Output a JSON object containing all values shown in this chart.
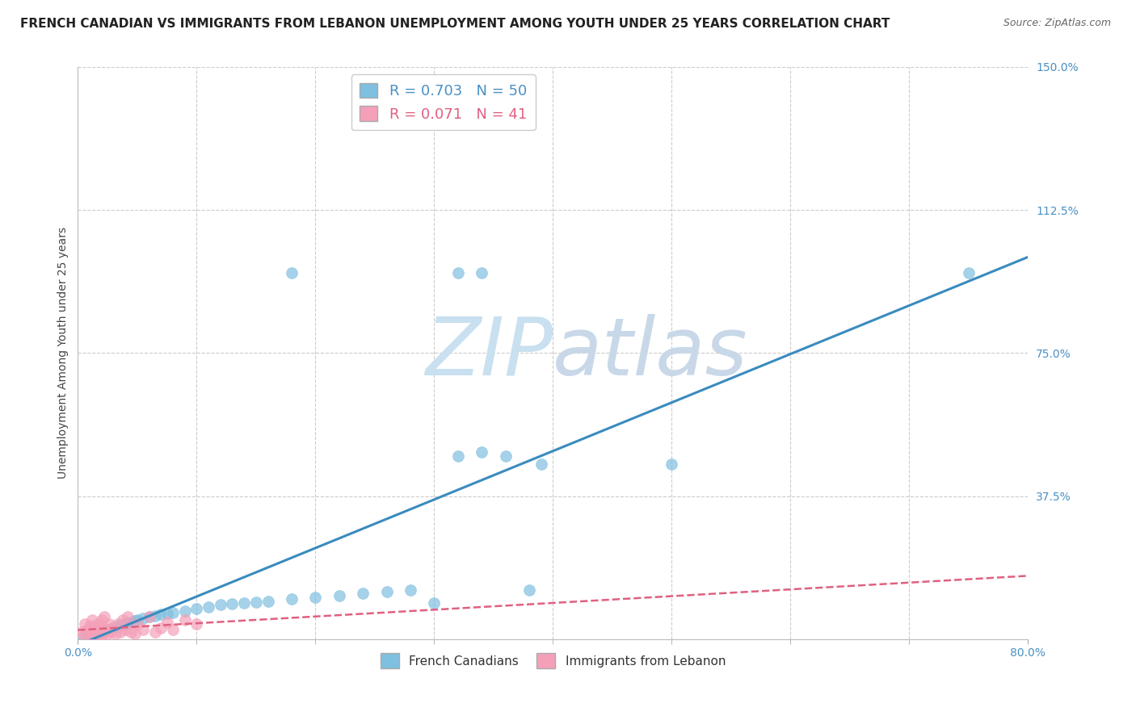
{
  "title": "FRENCH CANADIAN VS IMMIGRANTS FROM LEBANON UNEMPLOYMENT AMONG YOUTH UNDER 25 YEARS CORRELATION CHART",
  "source": "Source: ZipAtlas.com",
  "ylabel": "Unemployment Among Youth under 25 years",
  "xlim": [
    0.0,
    0.8
  ],
  "ylim": [
    0.0,
    1.5
  ],
  "yticks": [
    0.0,
    0.375,
    0.75,
    1.125,
    1.5
  ],
  "ytick_labels": [
    "",
    "37.5%",
    "75.0%",
    "112.5%",
    "150.0%"
  ],
  "legend_r1": "R = 0.703",
  "legend_n1": "N = 50",
  "legend_r2": "R = 0.071",
  "legend_n2": "N = 41",
  "blue_color": "#7fbfdf",
  "pink_color": "#f4a0b8",
  "line_blue": "#3a8bbf",
  "line_pink": "#e06080",
  "tick_color": "#4a90c4",
  "french_canadians_x": [
    0.005,
    0.008,
    0.01,
    0.012,
    0.015,
    0.018,
    0.02,
    0.022,
    0.025,
    0.028,
    0.03,
    0.032,
    0.035,
    0.038,
    0.04,
    0.042,
    0.045,
    0.048,
    0.05,
    0.055,
    0.06,
    0.065,
    0.07,
    0.075,
    0.08,
    0.09,
    0.1,
    0.11,
    0.12,
    0.13,
    0.14,
    0.15,
    0.16,
    0.18,
    0.2,
    0.22,
    0.24,
    0.26,
    0.28,
    0.3,
    0.32,
    0.34,
    0.36,
    0.38,
    0.32,
    0.34,
    0.39,
    0.18,
    0.5,
    0.75
  ],
  "french_canadians_y": [
    0.005,
    0.008,
    0.01,
    0.012,
    0.015,
    0.018,
    0.02,
    0.022,
    0.025,
    0.028,
    0.03,
    0.032,
    0.035,
    0.038,
    0.04,
    0.042,
    0.045,
    0.048,
    0.05,
    0.055,
    0.06,
    0.062,
    0.065,
    0.068,
    0.07,
    0.075,
    0.08,
    0.085,
    0.09,
    0.092,
    0.095,
    0.098,
    0.1,
    0.105,
    0.11,
    0.115,
    0.12,
    0.125,
    0.13,
    0.095,
    0.48,
    0.49,
    0.48,
    0.13,
    0.96,
    0.96,
    0.46,
    0.96,
    0.46,
    0.96
  ],
  "lebanon_x": [
    0.003,
    0.005,
    0.006,
    0.008,
    0.01,
    0.01,
    0.012,
    0.012,
    0.013,
    0.014,
    0.015,
    0.016,
    0.017,
    0.018,
    0.019,
    0.02,
    0.02,
    0.022,
    0.022,
    0.024,
    0.025,
    0.026,
    0.028,
    0.03,
    0.032,
    0.034,
    0.036,
    0.038,
    0.04,
    0.042,
    0.045,
    0.048,
    0.05,
    0.055,
    0.06,
    0.065,
    0.07,
    0.075,
    0.08,
    0.09,
    0.1
  ],
  "lebanon_y": [
    0.02,
    0.01,
    0.04,
    0.025,
    0.01,
    0.035,
    0.015,
    0.05,
    0.02,
    0.03,
    0.01,
    0.025,
    0.04,
    0.015,
    0.035,
    0.01,
    0.05,
    0.02,
    0.06,
    0.025,
    0.015,
    0.04,
    0.02,
    0.03,
    0.015,
    0.04,
    0.02,
    0.05,
    0.025,
    0.06,
    0.02,
    0.015,
    0.04,
    0.025,
    0.06,
    0.02,
    0.03,
    0.045,
    0.025,
    0.05,
    0.04
  ],
  "watermark_zip": "ZIP",
  "watermark_atlas": "atlas",
  "watermark_color_zip": "#c8e0f0",
  "watermark_color_atlas": "#c8d8e8",
  "background_color": "#ffffff",
  "title_fontsize": 11,
  "axis_label_fontsize": 10,
  "tick_fontsize": 10,
  "legend_fontsize": 13
}
